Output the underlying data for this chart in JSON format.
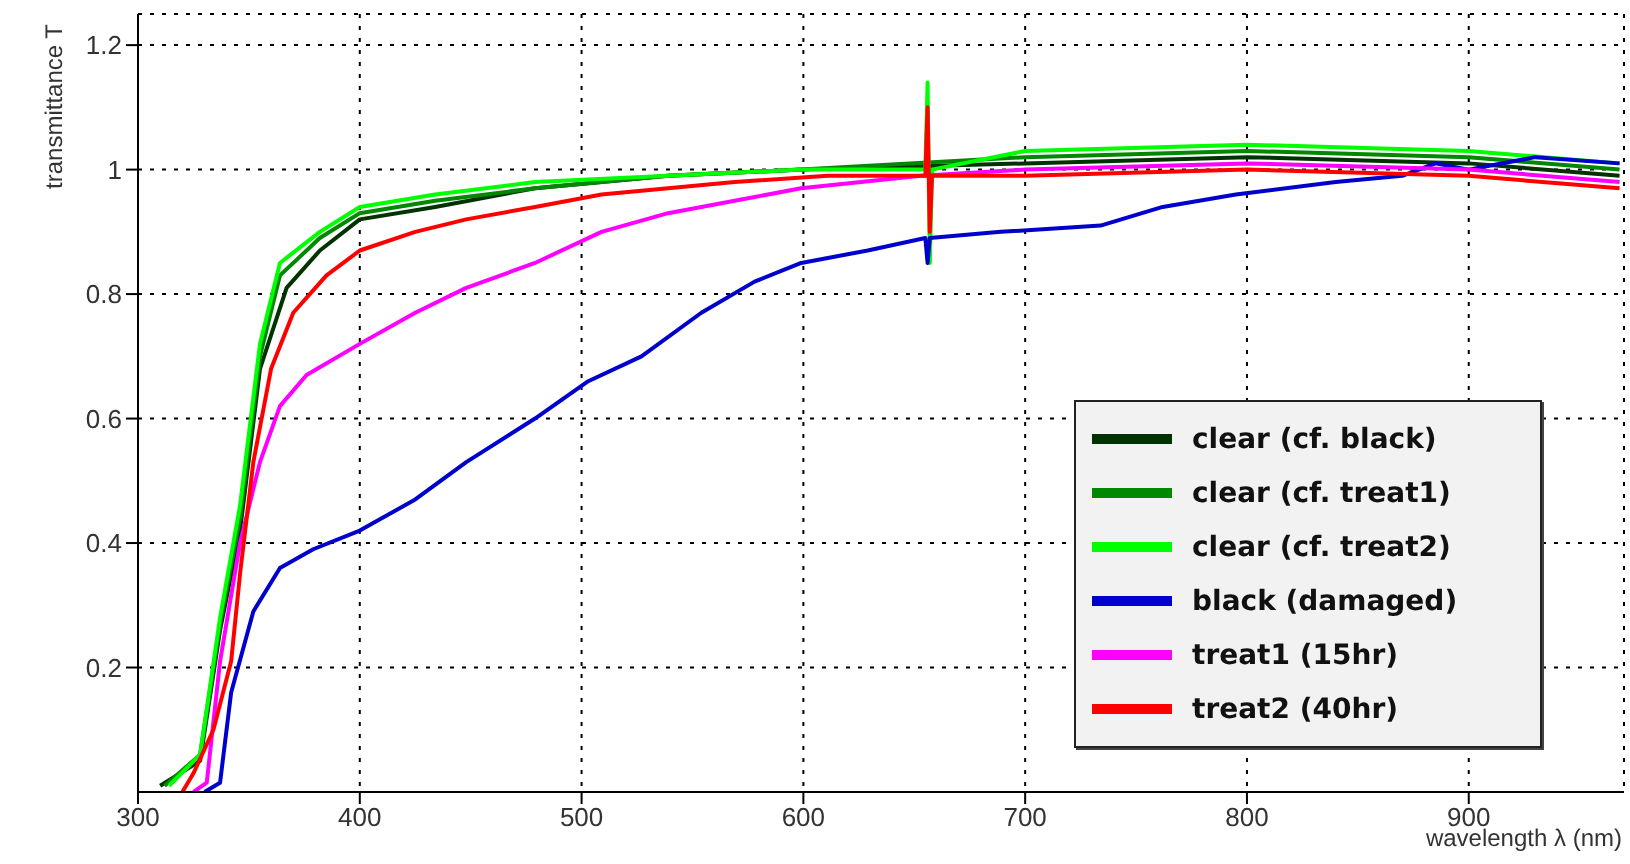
{
  "chart_data": {
    "type": "line",
    "xlabel": "wavelength λ (nm)",
    "ylabel": "transmittance T",
    "xlim": [
      300,
      970
    ],
    "xticks": [
      300,
      400,
      500,
      600,
      700,
      800,
      900
    ],
    "ylim": [
      0,
      1.25
    ],
    "yticks": [
      0.2,
      0.4,
      0.6,
      0.8,
      1,
      1.2
    ],
    "grid": true,
    "legend": "bottom right",
    "marker": "none",
    "line_style": "solid",
    "series": [
      {
        "name": "clear (cf. black)",
        "color": "#003300",
        "x": [
          310,
          328,
          337,
          346,
          355,
          367,
          382,
          400,
          434,
          479,
          539,
          599,
          700,
          800,
          900,
          968
        ],
        "values": [
          0.01,
          0.05,
          0.26,
          0.42,
          0.68,
          0.81,
          0.87,
          0.92,
          0.94,
          0.97,
          0.99,
          1.0,
          1.01,
          1.02,
          1.01,
          0.99
        ]
      },
      {
        "name": "clear (cf. treat1)",
        "color": "#008800",
        "x": [
          312,
          328,
          337,
          346,
          355,
          364,
          382,
          400,
          434,
          479,
          539,
          599,
          700,
          800,
          900,
          968
        ],
        "values": [
          0.01,
          0.06,
          0.27,
          0.44,
          0.7,
          0.83,
          0.89,
          0.93,
          0.95,
          0.97,
          0.99,
          1.0,
          1.02,
          1.03,
          1.02,
          1.0
        ]
      },
      {
        "name": "clear (cf. treat2)",
        "color": "#00ff00",
        "x": [
          314,
          328,
          337,
          346,
          355,
          364,
          382,
          400,
          434,
          479,
          539,
          599,
          655,
          656,
          657,
          658,
          700,
          800,
          900,
          968
        ],
        "values": [
          0.01,
          0.06,
          0.28,
          0.46,
          0.72,
          0.85,
          0.9,
          0.94,
          0.96,
          0.98,
          0.99,
          1.0,
          1.0,
          1.14,
          0.85,
          1.0,
          1.03,
          1.04,
          1.03,
          1.01
        ]
      },
      {
        "name": "black (damaged)",
        "color": "#0000cc",
        "x": [
          330,
          337,
          342,
          352,
          364,
          379,
          400,
          425,
          448,
          479,
          503,
          527,
          554,
          578,
          599,
          629,
          655,
          656,
          657,
          689,
          734,
          762,
          795,
          840,
          870,
          885,
          900,
          930,
          968
        ],
        "values": [
          0.0,
          0.015,
          0.16,
          0.29,
          0.36,
          0.39,
          0.42,
          0.47,
          0.53,
          0.6,
          0.66,
          0.7,
          0.77,
          0.82,
          0.85,
          0.87,
          0.89,
          0.85,
          0.89,
          0.9,
          0.91,
          0.94,
          0.96,
          0.98,
          0.99,
          1.01,
          1.0,
          1.02,
          1.01
        ]
      },
      {
        "name": "treat1 (15hr)",
        "color": "#ff00ff",
        "x": [
          325,
          331,
          337,
          346,
          355,
          364,
          376,
          400,
          425,
          448,
          479,
          509,
          539,
          569,
          599,
          653,
          700,
          800,
          900,
          968
        ],
        "values": [
          0.0,
          0.015,
          0.21,
          0.4,
          0.53,
          0.62,
          0.67,
          0.72,
          0.77,
          0.81,
          0.85,
          0.9,
          0.93,
          0.95,
          0.97,
          0.99,
          1.0,
          1.01,
          1.0,
          0.98
        ]
      },
      {
        "name": "treat2 (40hr)",
        "color": "#ff0000",
        "x": [
          320,
          325,
          334,
          342,
          346,
          352,
          360,
          370,
          385,
          400,
          425,
          448,
          479,
          509,
          539,
          569,
          611,
          655,
          656,
          657,
          658,
          700,
          800,
          900,
          968
        ],
        "values": [
          0.0,
          0.03,
          0.1,
          0.21,
          0.35,
          0.53,
          0.68,
          0.77,
          0.83,
          0.87,
          0.9,
          0.92,
          0.94,
          0.96,
          0.97,
          0.98,
          0.99,
          0.99,
          1.1,
          0.9,
          0.99,
          0.99,
          1.0,
          0.99,
          0.97
        ]
      }
    ]
  }
}
